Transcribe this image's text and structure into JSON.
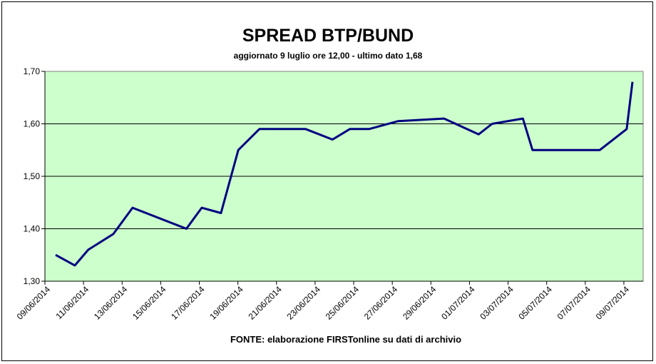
{
  "chart_data": {
    "type": "line",
    "title": "SPREAD BTP/BUND",
    "subtitle": "aggiornato 9 luglio ore 12,00 - ultimo dato 1,68",
    "source": "FONTE: elaborazione FIRSTonline su dati di archivio",
    "xlabel": "",
    "ylabel": "",
    "ylim": [
      1.3,
      1.7
    ],
    "y_ticks": [
      "1,70",
      "1,60",
      "1,50",
      "1,40",
      "1,30"
    ],
    "x_tick_labels": [
      "09/06/2014",
      "11/06/2014",
      "13/06/2014",
      "15/06/2014",
      "17/06/2014",
      "19/06/2014",
      "21/06/2014",
      "23/06/2014",
      "25/06/2014",
      "27/06/2014",
      "29/06/2014",
      "01/07/2014",
      "03/07/2014",
      "05/07/2014",
      "07/07/2014",
      "09/07/2014"
    ],
    "grid": true,
    "colors": {
      "plot_bg": "#ccffcc",
      "line": "#000080",
      "grid": "#000000"
    },
    "series": [
      {
        "x": [
          0,
          1,
          1.7,
          3,
          4,
          6.8,
          7.6,
          8.6,
          9.5,
          10.6,
          13,
          14.4,
          15.3,
          16.3,
          17.8,
          20.2,
          22,
          22.7,
          24.3,
          24.8,
          25.9,
          27.2,
          28.3,
          29.7,
          30
        ],
        "values": [
          1.35,
          1.33,
          1.36,
          1.39,
          1.44,
          1.4,
          1.44,
          1.43,
          1.55,
          1.59,
          1.59,
          1.57,
          1.59,
          1.59,
          1.605,
          1.61,
          1.58,
          1.6,
          1.61,
          1.55,
          1.55,
          1.55,
          1.55,
          1.59,
          1.68
        ]
      }
    ]
  }
}
